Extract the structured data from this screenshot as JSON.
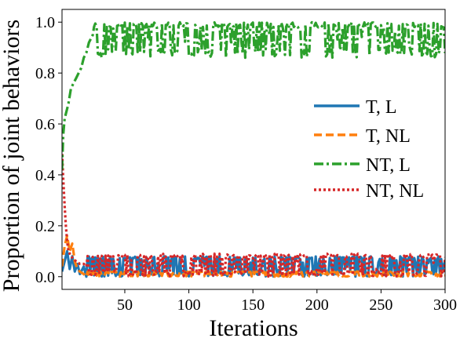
{
  "chart_data": {
    "type": "line",
    "title": "",
    "xlabel": "Iterations",
    "ylabel": "Proportion of joint behaviors",
    "xlim": [
      1,
      300
    ],
    "ylim": [
      -0.05,
      1.05
    ],
    "xticks": [
      50,
      100,
      150,
      200,
      250,
      300
    ],
    "yticks": [
      0.0,
      0.2,
      0.4,
      0.6,
      0.8,
      1.0
    ],
    "grid": false,
    "legend_position": "center-right",
    "series": [
      {
        "name": "T, L",
        "color": "#1f77b4",
        "dash": "solid",
        "shape": {
          "points": [
            [
              1,
              0.02
            ],
            [
              3,
              0.06
            ],
            [
              5,
              0.1
            ],
            [
              7,
              0.03
            ],
            [
              9,
              0.08
            ],
            [
              11,
              0.02
            ],
            [
              13,
              0.05
            ],
            [
              15,
              0.01
            ],
            [
              18,
              0.04
            ],
            [
              20,
              0.0
            ]
          ],
          "noise_from": 20,
          "low": 0.0,
          "high": 0.08
        }
      },
      {
        "name": "T, NL",
        "color": "#ff7f0e",
        "dash": "dashed",
        "shape": {
          "points": [
            [
              1,
              0.04
            ],
            [
              3,
              0.12
            ],
            [
              5,
              0.16
            ],
            [
              7,
              0.1
            ],
            [
              9,
              0.13
            ],
            [
              11,
              0.06
            ],
            [
              13,
              0.03
            ],
            [
              15,
              0.02
            ],
            [
              18,
              0.01
            ],
            [
              20,
              0.0
            ]
          ],
          "noise_from": 20,
          "low": 0.0,
          "high": 0.02
        }
      },
      {
        "name": "NT, L",
        "color": "#2ca02c",
        "dash": "dashdot",
        "shape": {
          "points": [
            [
              1,
              0.42
            ],
            [
              2,
              0.56
            ],
            [
              3,
              0.62
            ],
            [
              4,
              0.64
            ],
            [
              6,
              0.68
            ],
            [
              8,
              0.74
            ],
            [
              10,
              0.76
            ],
            [
              12,
              0.78
            ],
            [
              14,
              0.8
            ],
            [
              16,
              0.82
            ],
            [
              18,
              0.86
            ],
            [
              20,
              0.88
            ],
            [
              22,
              0.92
            ],
            [
              25,
              0.95
            ]
          ],
          "noise_from": 25,
          "low": 0.86,
          "high": 1.0
        }
      },
      {
        "name": "NT, NL",
        "color": "#d62728",
        "dash": "dotted",
        "shape": {
          "points": [
            [
              1,
              0.5
            ],
            [
              2,
              0.38
            ],
            [
              3,
              0.28
            ],
            [
              4,
              0.2
            ],
            [
              5,
              0.14
            ],
            [
              6,
              0.1
            ],
            [
              8,
              0.08
            ],
            [
              10,
              0.07
            ],
            [
              12,
              0.06
            ],
            [
              15,
              0.05
            ],
            [
              18,
              0.05
            ],
            [
              20,
              0.04
            ]
          ],
          "noise_from": 20,
          "low": 0.0,
          "high": 0.09
        }
      }
    ]
  }
}
